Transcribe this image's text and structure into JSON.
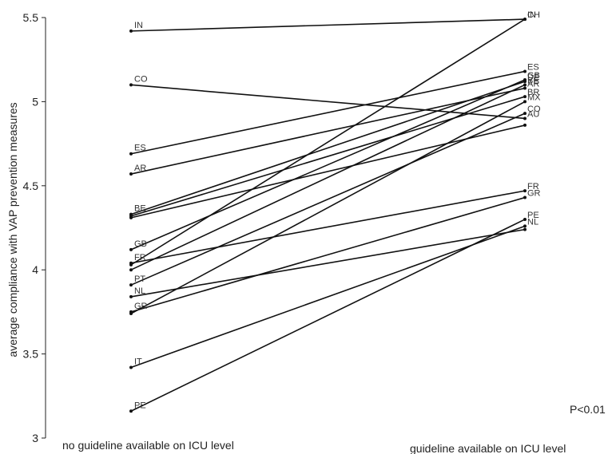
{
  "chart_data": {
    "type": "line",
    "ylabel": "average compliance with VAP prevention measures",
    "ylim": [
      3,
      5.5
    ],
    "yticks": [
      "3",
      "3.5",
      "4",
      "4.5",
      "5",
      "5.5"
    ],
    "categories": [
      "no guideline available on ICU level",
      "guideline available on ICU level"
    ],
    "annotation": "P<0.01",
    "left_labels_shown": [
      "IN",
      "CO",
      "ES",
      "AR",
      "BE",
      "GB",
      "FR",
      "PT",
      "NL",
      "GR",
      "IT",
      "PE"
    ],
    "right_labels_shown": [
      "CH",
      "IN",
      "ES",
      "GB",
      "DE",
      "BE",
      "AR",
      "BR",
      "MX",
      "CO",
      "AU",
      "FR",
      "GR",
      "PE",
      "NL"
    ],
    "series": [
      {
        "name": "IN",
        "values": [
          5.42,
          5.49
        ]
      },
      {
        "name": "CO",
        "values": [
          5.1,
          4.9
        ]
      },
      {
        "name": "ES",
        "values": [
          4.69,
          5.18
        ]
      },
      {
        "name": "AR",
        "values": [
          4.57,
          5.08
        ]
      },
      {
        "name": "BE",
        "values": [
          4.33,
          5.12
        ]
      },
      {
        "name": "",
        "values": [
          4.32,
          5.03
        ]
      },
      {
        "name": "",
        "values": [
          4.31,
          4.86
        ]
      },
      {
        "name": "GB",
        "values": [
          4.12,
          5.13
        ]
      },
      {
        "name": "FR",
        "values": [
          4.04,
          4.47
        ]
      },
      {
        "name": "",
        "values": [
          4.03,
          5.49
        ]
      },
      {
        "name": "",
        "values": [
          4.0,
          5.1
        ]
      },
      {
        "name": "PT",
        "values": [
          3.91,
          4.93
        ]
      },
      {
        "name": "NL",
        "values": [
          3.84,
          4.24
        ]
      },
      {
        "name": "GR",
        "values": [
          3.75,
          4.43
        ]
      },
      {
        "name": "",
        "values": [
          3.74,
          5.0
        ]
      },
      {
        "name": "IT",
        "values": [
          3.42,
          4.26
        ]
      },
      {
        "name": "PE",
        "values": [
          3.16,
          4.3
        ]
      }
    ]
  }
}
